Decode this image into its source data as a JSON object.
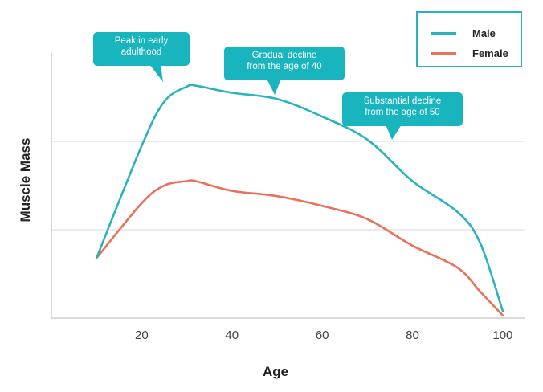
{
  "chart_data": {
    "type": "line",
    "xlabel": "Age",
    "ylabel": "Muscle Mass",
    "xlim": [
      0,
      105
    ],
    "ylim": [
      0,
      3
    ],
    "x_ticks": [
      20,
      40,
      60,
      80,
      100
    ],
    "grid": "horizontal",
    "legend_position": "top-right",
    "series": [
      {
        "name": "Male",
        "color": "#2bb3bd",
        "x": [
          10,
          20,
          25,
          30,
          32,
          40,
          50,
          60,
          70,
          80,
          90,
          95,
          100
        ],
        "y": [
          0.68,
          1.95,
          2.45,
          2.62,
          2.63,
          2.55,
          2.48,
          2.28,
          2.02,
          1.55,
          1.2,
          0.85,
          0.08
        ]
      },
      {
        "name": "Female",
        "color": "#e8715b",
        "x": [
          10,
          20,
          25,
          30,
          32,
          40,
          50,
          60,
          70,
          80,
          90,
          95,
          100
        ],
        "y": [
          0.68,
          1.3,
          1.5,
          1.55,
          1.55,
          1.44,
          1.38,
          1.27,
          1.12,
          0.82,
          0.57,
          0.3,
          0.03
        ]
      }
    ],
    "annotations": [
      {
        "id": "peak",
        "lines": [
          "Peak in early",
          "adulthood"
        ]
      },
      {
        "id": "gradual",
        "lines": [
          "Gradual decline",
          "from the age of 40"
        ]
      },
      {
        "id": "substantial",
        "lines": [
          "Substantial decline",
          "from the age of 50"
        ]
      }
    ]
  }
}
